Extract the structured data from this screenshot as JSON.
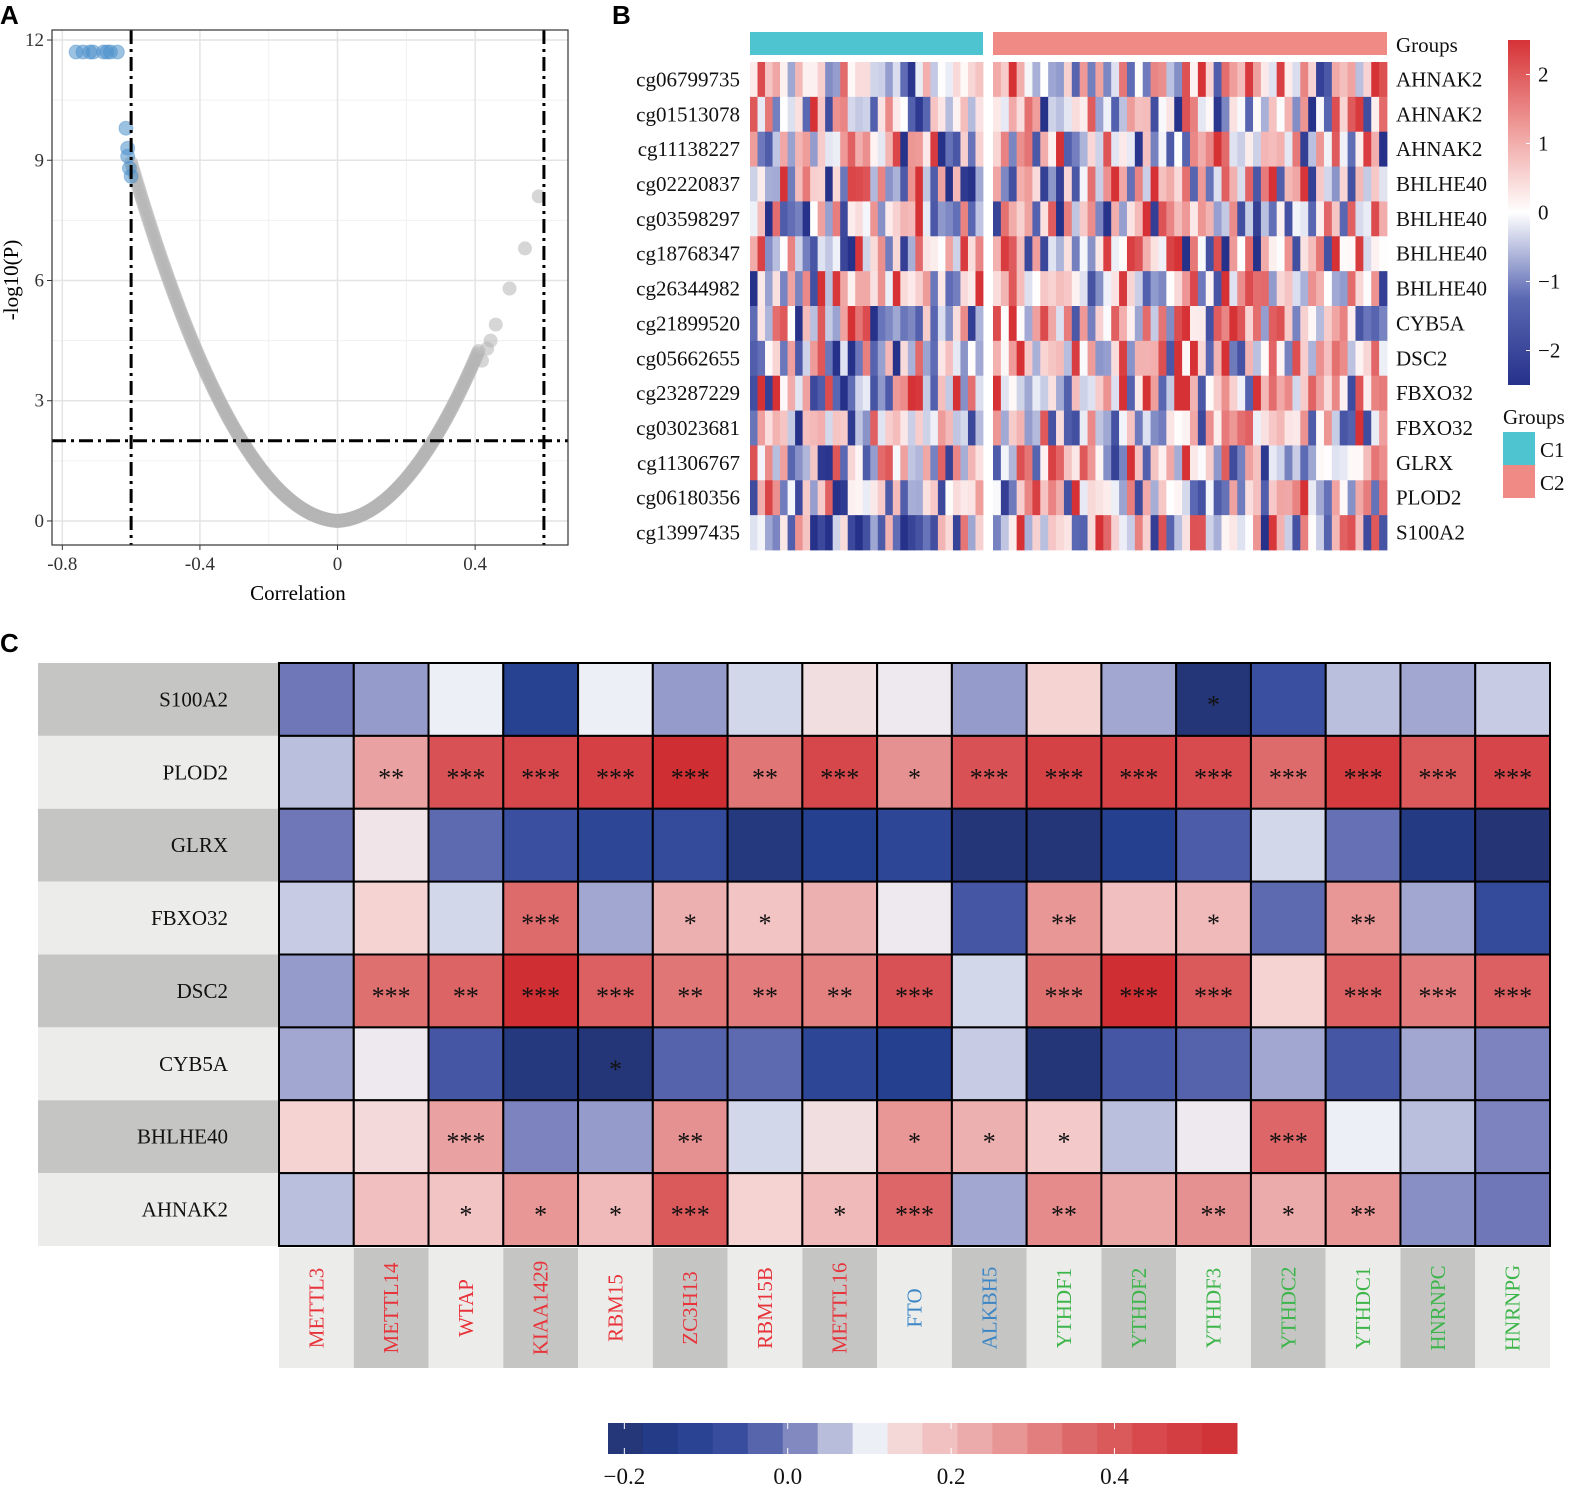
{
  "panels": {
    "a": "A",
    "b": "B",
    "c": "C"
  },
  "chart_data": [
    {
      "type": "scatter",
      "panel": "A",
      "xlabel": "Correlation",
      "ylabel": "-log10(P)",
      "xlim": [
        -0.83,
        0.67
      ],
      "ylim": [
        -0.6,
        12.25
      ],
      "xticks": [
        -0.8,
        -0.4,
        0,
        0.4
      ],
      "xtick_labels": [
        "-0.8",
        "-0.4",
        "0",
        "0.4"
      ],
      "yticks": [
        0,
        3,
        6,
        9,
        12
      ],
      "ytick_labels": [
        "0",
        "3",
        "6",
        "9",
        "12"
      ],
      "grid": true,
      "thresholds": {
        "correlation": [
          -0.6,
          0.6
        ],
        "neg_log10_p": 2
      },
      "colors": {
        "significant": "#4a8fcb",
        "other": "#b5b5b5"
      },
      "significant_points": [
        [
          -0.76,
          11.7
        ],
        [
          -0.74,
          11.7
        ],
        [
          -0.72,
          11.7
        ],
        [
          -0.71,
          11.7
        ],
        [
          -0.68,
          11.7
        ],
        [
          -0.67,
          11.7
        ],
        [
          -0.66,
          11.7
        ],
        [
          -0.64,
          11.7
        ],
        [
          -0.615,
          9.8
        ],
        [
          -0.61,
          9.3
        ],
        [
          -0.61,
          9.1
        ],
        [
          -0.605,
          8.8
        ],
        [
          -0.6,
          8.6
        ]
      ],
      "outlier_points": [
        [
          0.585,
          8.1
        ],
        [
          0.545,
          6.8
        ],
        [
          0.5,
          5.8
        ],
        [
          0.46,
          4.9
        ],
        [
          0.445,
          4.5
        ],
        [
          0.435,
          4.3
        ],
        [
          0.42,
          4.0
        ]
      ],
      "background_curve_range": [
        -0.6,
        0.41
      ]
    },
    {
      "type": "heatmap",
      "panel": "B",
      "group_label": "Groups",
      "groups": [
        {
          "name": "C1",
          "color": "#4dc4cf",
          "n_samples": 31
        },
        {
          "name": "C2",
          "color": "#f08a84",
          "n_samples": 50
        }
      ],
      "rows": [
        {
          "probe": "cg06799735",
          "gene": "AHNAK2"
        },
        {
          "probe": "cg01513078",
          "gene": "AHNAK2"
        },
        {
          "probe": "cg11138227",
          "gene": "AHNAK2"
        },
        {
          "probe": "cg02220837",
          "gene": "BHLHE40"
        },
        {
          "probe": "cg03598297",
          "gene": "BHLHE40"
        },
        {
          "probe": "cg18768347",
          "gene": "BHLHE40"
        },
        {
          "probe": "cg26344982",
          "gene": "BHLHE40"
        },
        {
          "probe": "cg21899520",
          "gene": "CYB5A"
        },
        {
          "probe": "cg05662655",
          "gene": "DSC2"
        },
        {
          "probe": "cg23287229",
          "gene": "FBXO32"
        },
        {
          "probe": "cg03023681",
          "gene": "FBXO32"
        },
        {
          "probe": "cg11306767",
          "gene": "GLRX"
        },
        {
          "probe": "cg06180356",
          "gene": "PLOD2"
        },
        {
          "probe": "cg13997435",
          "gene": "S100A2"
        }
      ],
      "colorbar": {
        "min": -2.5,
        "max": 2.5,
        "ticks": [
          2,
          1,
          0,
          -1,
          -2
        ],
        "tick_labels": [
          "2",
          "1",
          "0",
          "−1",
          "−2"
        ],
        "low": "#283a8f",
        "mid": "#ffffff",
        "high": "#d63236"
      }
    },
    {
      "type": "heatmap",
      "panel": "C",
      "rows": [
        "S100A2",
        "PLOD2",
        "GLRX",
        "FBXO32",
        "DSC2",
        "CYB5A",
        "BHLHE40",
        "AHNAK2"
      ],
      "columns": [
        {
          "name": "METTL3",
          "role": "writer"
        },
        {
          "name": "METTL14",
          "role": "writer"
        },
        {
          "name": "WTAP",
          "role": "writer"
        },
        {
          "name": "KIAA1429",
          "role": "writer"
        },
        {
          "name": "RBM15",
          "role": "writer"
        },
        {
          "name": "ZC3H13",
          "role": "writer"
        },
        {
          "name": "RBM15B",
          "role": "writer"
        },
        {
          "name": "METTL16",
          "role": "writer"
        },
        {
          "name": "FTO",
          "role": "eraser"
        },
        {
          "name": "ALKBH5",
          "role": "eraser"
        },
        {
          "name": "YTHDF1",
          "role": "reader"
        },
        {
          "name": "YTHDF2",
          "role": "reader"
        },
        {
          "name": "YTHDF3",
          "role": "reader"
        },
        {
          "name": "YTHDC2",
          "role": "reader"
        },
        {
          "name": "YTHDC1",
          "role": "reader"
        },
        {
          "name": "HNRNPC",
          "role": "reader"
        },
        {
          "name": "HNRNPG",
          "role": "reader"
        }
      ],
      "role_colors": {
        "writer": "#e8333a",
        "eraser": "#3d86c6",
        "reader": "#3db54a"
      },
      "values": [
        [
          0.0,
          0.03,
          0.1,
          -0.12,
          0.1,
          0.03,
          0.08,
          0.13,
          0.11,
          0.03,
          0.15,
          0.04,
          -0.2,
          -0.06,
          0.06,
          0.04,
          0.07
        ],
        [
          0.06,
          0.25,
          0.42,
          0.45,
          0.48,
          0.55,
          0.33,
          0.45,
          0.28,
          0.42,
          0.47,
          0.47,
          0.44,
          0.35,
          0.5,
          0.4,
          0.46
        ],
        [
          0.0,
          0.12,
          -0.02,
          -0.06,
          -0.1,
          -0.08,
          -0.18,
          -0.13,
          -0.1,
          -0.2,
          -0.2,
          -0.13,
          -0.04,
          0.08,
          -0.01,
          -0.17,
          -0.21
        ],
        [
          0.07,
          0.15,
          0.08,
          0.35,
          0.04,
          0.22,
          0.18,
          0.22,
          0.11,
          -0.05,
          0.27,
          0.19,
          0.2,
          -0.02,
          0.27,
          0.04,
          -0.08
        ],
        [
          0.03,
          0.34,
          0.37,
          0.55,
          0.38,
          0.33,
          0.32,
          0.31,
          0.42,
          0.08,
          0.34,
          0.55,
          0.4,
          0.15,
          0.38,
          0.32,
          0.38
        ],
        [
          0.04,
          0.11,
          -0.05,
          -0.18,
          -0.2,
          -0.03,
          -0.02,
          -0.1,
          -0.13,
          0.07,
          -0.2,
          -0.05,
          -0.03,
          0.04,
          -0.05,
          0.04,
          0.01
        ],
        [
          0.15,
          0.14,
          0.25,
          0.01,
          0.03,
          0.28,
          0.08,
          0.13,
          0.27,
          0.22,
          0.17,
          0.06,
          0.11,
          0.36,
          0.1,
          0.06,
          0.01
        ],
        [
          0.06,
          0.19,
          0.18,
          0.27,
          0.2,
          0.4,
          0.15,
          0.2,
          0.36,
          0.04,
          0.29,
          0.24,
          0.28,
          0.23,
          0.27,
          0.02,
          0.0
        ]
      ],
      "stars": [
        [
          "",
          "",
          "",
          "",
          "",
          "",
          "",
          "",
          "",
          "",
          "",
          "",
          "*",
          "",
          "",
          "",
          ""
        ],
        [
          "",
          "**",
          "***",
          "***",
          "***",
          "***",
          "**",
          "***",
          "*",
          "***",
          "***",
          "***",
          "***",
          "***",
          "***",
          "***",
          "***"
        ],
        [
          "",
          "",
          "",
          "",
          "",
          "",
          "",
          "",
          "",
          "",
          "",
          "",
          "",
          "",
          "",
          "",
          ""
        ],
        [
          "",
          "",
          "",
          "***",
          "",
          "*",
          "*",
          "",
          "",
          "",
          "**",
          "",
          "*",
          "",
          "**",
          "",
          ""
        ],
        [
          "",
          "***",
          "**",
          "***",
          "***",
          "**",
          "**",
          "**",
          "***",
          "",
          "***",
          "***",
          "***",
          "",
          "***",
          "***",
          "***"
        ],
        [
          "",
          "",
          "",
          "",
          "*",
          "",
          "",
          "",
          "",
          "",
          "",
          "",
          "",
          "",
          "",
          "",
          ""
        ],
        [
          "",
          "",
          "***",
          "",
          "",
          "**",
          "",
          "",
          "*",
          "*",
          "*",
          "",
          "",
          "***",
          "",
          "",
          ""
        ],
        [
          "",
          "",
          "*",
          "*",
          "*",
          "***",
          "",
          "*",
          "***",
          "",
          "**",
          "",
          "**",
          "*",
          "**",
          "",
          ""
        ]
      ],
      "legend": {
        "min": -0.22,
        "max": 0.55,
        "ticks": [
          -0.2,
          0.0,
          0.2,
          0.4
        ],
        "tick_labels": [
          "−0.2",
          "0.0",
          "0.2",
          "0.4"
        ],
        "bins": 18
      }
    }
  ]
}
